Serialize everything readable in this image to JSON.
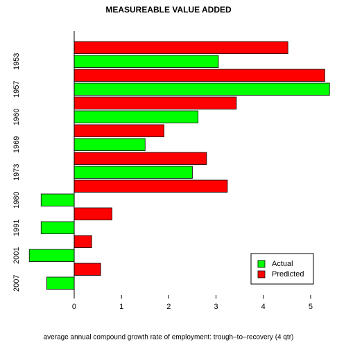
{
  "chart_data": {
    "type": "bar",
    "orientation": "horizontal",
    "title": "MEASUREABLE VALUE ADDED",
    "x_label": "average annual compound growth rate of employment: trough–to–recovery (4 qtr)",
    "categories": [
      "1953",
      "1957",
      "1960",
      "1969",
      "1973",
      "1980",
      "1991",
      "2001",
      "2007"
    ],
    "series": [
      {
        "name": "Actual",
        "color": "#00ff00",
        "values": [
          3.05,
          5.4,
          2.62,
          1.5,
          2.5,
          -0.7,
          -0.7,
          -0.95,
          -0.58
        ]
      },
      {
        "name": "Predicted",
        "color": "#ff0000",
        "values": [
          4.52,
          5.3,
          3.43,
          1.9,
          2.8,
          3.24,
          0.8,
          0.37,
          0.56
        ]
      }
    ],
    "xlim": [
      -1,
      5.5
    ],
    "xticks": [
      0,
      1,
      2,
      3,
      4,
      5
    ],
    "legend": "bottom-right"
  }
}
